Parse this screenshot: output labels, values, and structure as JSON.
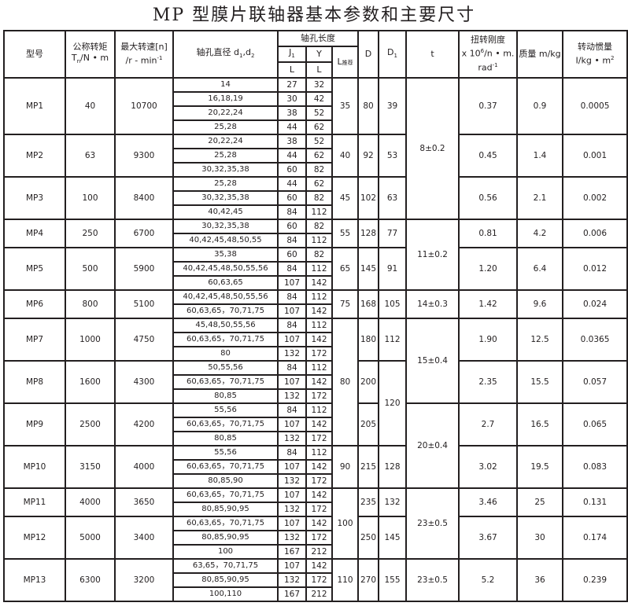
{
  "title": "MP 型膜片联轴器基本参数和主要尺寸",
  "headers": {
    "model": "型号",
    "torque": "公称转矩",
    "torque_unit": "T",
    "torque_sub": "n",
    "torque_unit2": "/N • m",
    "speed": "最大转速[n]",
    "speed_unit": "/r - min",
    "speed_sup": "-1",
    "bore": "轴孔直径 d",
    "bore_sub1": "1",
    "bore_mid": ",d",
    "bore_sub2": "2",
    "hub_length": "轴孔长度",
    "j1": "J",
    "j1_sub": "1",
    "y": "Y",
    "l": "L",
    "l_rec": "L",
    "l_rec_sub": "推荐",
    "D": "D",
    "D1": "D",
    "D1_sub": "1",
    "t": "t",
    "stiffness": "扭转刚度",
    "stiffness_unit": "x 10",
    "stiffness_sup": "6",
    "stiffness_unit2": "/n • m.",
    "stiffness_unit3": "rad",
    "stiffness_sup2": "-1",
    "mass": "质量 m/kg",
    "inertia": "转动惯量",
    "inertia_unit": "I/kg • m",
    "inertia_sup": "2"
  },
  "models": [
    {
      "model": "MP1",
      "torque": "40",
      "speed": "10700",
      "D": "80",
      "stiffness": "0.37",
      "mass": "0.9",
      "inertia": "0.0005",
      "rows": [
        [
          "14",
          "27",
          "32"
        ],
        [
          "16,18,19",
          "30",
          "42"
        ],
        [
          "20,22,24",
          "38",
          "52"
        ],
        [
          "25,28",
          "44",
          "62"
        ]
      ]
    },
    {
      "model": "MP2",
      "torque": "63",
      "speed": "9300",
      "D": "92",
      "stiffness": "0.45",
      "mass": "1.4",
      "inertia": "0.001",
      "rows": [
        [
          "20,22,24",
          "38",
          "52"
        ],
        [
          "25,28",
          "44",
          "62"
        ],
        [
          "30,32,35,38",
          "60",
          "82"
        ]
      ]
    },
    {
      "model": "MP3",
      "torque": "100",
      "speed": "8400",
      "D": "102",
      "stiffness": "0.56",
      "mass": "2.1",
      "inertia": "0.002",
      "rows": [
        [
          "25,28",
          "44",
          "62"
        ],
        [
          "30,32,35,38",
          "60",
          "82"
        ],
        [
          "40,42,45",
          "84",
          "112"
        ]
      ]
    },
    {
      "model": "MP4",
      "torque": "250",
      "speed": "6700",
      "D": "128",
      "stiffness": "0.81",
      "mass": "4.2",
      "inertia": "0.006",
      "rows": [
        [
          "30,32,35,38",
          "60",
          "82"
        ],
        [
          "40,42,45,48,50,55",
          "84",
          "112"
        ]
      ]
    },
    {
      "model": "MP5",
      "torque": "500",
      "speed": "5900",
      "D": "145",
      "stiffness": "1.20",
      "mass": "6.4",
      "inertia": "0.012",
      "rows": [
        [
          "35,38",
          "60",
          "82"
        ],
        [
          "40,42,45,48,50,55,56",
          "84",
          "112"
        ],
        [
          "60,63,65",
          "107",
          "142"
        ]
      ]
    },
    {
      "model": "MP6",
      "torque": "800",
      "speed": "5100",
      "D": "168",
      "stiffness": "1.42",
      "mass": "9.6",
      "inertia": "0.024",
      "rows": [
        [
          "40,42,45,48,50,55,56",
          "84",
          "112"
        ],
        [
          "60,63,65，70,71,75",
          "107",
          "142"
        ]
      ]
    },
    {
      "model": "MP7",
      "torque": "1000",
      "speed": "4750",
      "D": "180",
      "stiffness": "1.90",
      "mass": "12.5",
      "inertia": "0.0365",
      "rows": [
        [
          "45,48,50,55,56",
          "84",
          "112"
        ],
        [
          "60,63,65，70,71,75",
          "107",
          "142"
        ],
        [
          "80",
          "132",
          "172"
        ]
      ]
    },
    {
      "model": "MP8",
      "torque": "1600",
      "speed": "4300",
      "D": "200",
      "stiffness": "2.35",
      "mass": "15.5",
      "inertia": "0.057",
      "rows": [
        [
          "50,55,56",
          "84",
          "112"
        ],
        [
          "60,63,65，70,71,75",
          "107",
          "142"
        ],
        [
          "80,85",
          "132",
          "172"
        ]
      ]
    },
    {
      "model": "MP9",
      "torque": "2500",
      "speed": "4200",
      "D": "205",
      "stiffness": "2.7",
      "mass": "16.5",
      "inertia": "0.065",
      "rows": [
        [
          "55,56",
          "84",
          "112"
        ],
        [
          "60,63,65，70,71,75",
          "107",
          "142"
        ],
        [
          "80,85",
          "132",
          "172"
        ]
      ]
    },
    {
      "model": "MP10",
      "torque": "3150",
      "speed": "4000",
      "D": "215",
      "stiffness": "3.02",
      "mass": "19.5",
      "inertia": "0.083",
      "rows": [
        [
          "55,56",
          "84",
          "112"
        ],
        [
          "60,63,65，70,71,75",
          "107",
          "142"
        ],
        [
          "80,85,90",
          "132",
          "172"
        ]
      ]
    },
    {
      "model": "MP11",
      "torque": "4000",
      "speed": "3650",
      "D": "235",
      "stiffness": "3.46",
      "mass": "25",
      "inertia": "0.131",
      "rows": [
        [
          "60,63,65，70,71,75",
          "107",
          "142"
        ],
        [
          "80,85,90,95",
          "132",
          "172"
        ]
      ]
    },
    {
      "model": "MP12",
      "torque": "5000",
      "speed": "3400",
      "D": "250",
      "stiffness": "3.67",
      "mass": "30",
      "inertia": "0.174",
      "rows": [
        [
          "60,63,65，70,71,75",
          "107",
          "142"
        ],
        [
          "80,85,90,95",
          "132",
          "172"
        ],
        [
          "100",
          "167",
          "212"
        ]
      ]
    },
    {
      "model": "MP13",
      "torque": "6300",
      "speed": "3200",
      "D": "270",
      "stiffness": "5.2",
      "mass": "36",
      "inertia": "0.239",
      "rows": [
        [
          "63,65，70,71,75",
          "107",
          "142"
        ],
        [
          "80,85,90,95",
          "132",
          "172"
        ],
        [
          "100,110",
          "167",
          "212"
        ]
      ]
    }
  ],
  "l_rec_groups": [
    {
      "value": "35",
      "models": 1
    },
    {
      "value": "40",
      "models": 1
    },
    {
      "value": "45",
      "models": 1
    },
    {
      "value": "55",
      "models": 1
    },
    {
      "value": "65",
      "models": 1
    },
    {
      "value": "75",
      "models": 1
    },
    {
      "value": "80",
      "models": 3
    },
    {
      "value": "90",
      "models": 1
    },
    {
      "value": "100",
      "models": 2
    },
    {
      "value": "110",
      "models": 1
    }
  ],
  "D1_groups": [
    {
      "value": "39",
      "models": 1
    },
    {
      "value": "53",
      "models": 1
    },
    {
      "value": "63",
      "models": 1
    },
    {
      "value": "77",
      "models": 1
    },
    {
      "value": "91",
      "models": 1
    },
    {
      "value": "105",
      "models": 1
    },
    {
      "value": "112",
      "models": 1
    },
    {
      "value": "120",
      "models": 2
    },
    {
      "value": "128",
      "models": 1
    },
    {
      "value": "132",
      "models": 1
    },
    {
      "value": "145",
      "models": 1
    },
    {
      "value": "155",
      "models": 1
    }
  ],
  "t_groups": [
    {
      "value": "8±0.2",
      "models": 3
    },
    {
      "value": "11±0.2",
      "models": 2
    },
    {
      "value": "14±0.3",
      "models": 1
    },
    {
      "value": "15±0.4",
      "models": 2
    },
    {
      "value": "20±0.4",
      "models": 2
    },
    {
      "value": "23±0.5",
      "models": 2
    },
    {
      "value": "23±0.5",
      "models": 1
    }
  ]
}
